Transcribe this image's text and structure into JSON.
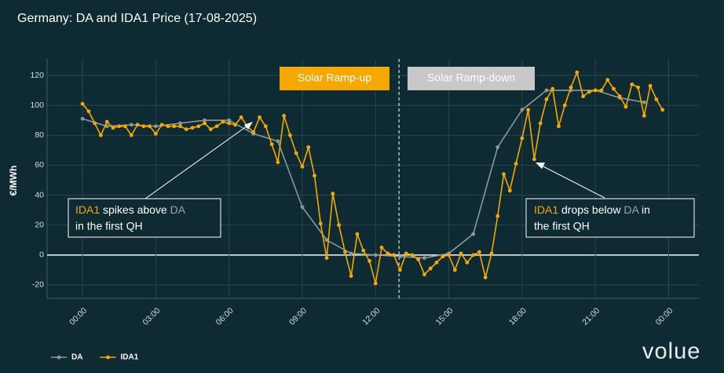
{
  "chart_data": {
    "type": "line",
    "title": "Germany: DA and IDA1 Price (17-08-2025)",
    "y_label": "€/MWh",
    "xlim": [
      -1.45,
      25.24
    ],
    "ylim": [
      -29,
      131
    ],
    "xticks": [
      {
        "value": 0,
        "label": "00:00"
      },
      {
        "value": 3,
        "label": "03:00"
      },
      {
        "value": 6,
        "label": "06:00"
      },
      {
        "value": 9,
        "label": "09:00"
      },
      {
        "value": 12,
        "label": "12:00"
      },
      {
        "value": 15,
        "label": "15:00"
      },
      {
        "value": 18,
        "label": "18:00"
      },
      {
        "value": 21,
        "label": "21:00"
      },
      {
        "value": 24,
        "label": "00:00"
      }
    ],
    "yticks": [
      -20,
      0,
      20,
      40,
      60,
      80,
      100,
      120
    ],
    "grid": true,
    "divider_x": 12.96,
    "series": [
      {
        "name": "DA",
        "color": "#8c979b",
        "x": [
          0,
          1,
          2,
          3,
          4,
          5,
          6,
          7,
          8,
          9,
          10,
          11,
          12,
          13,
          14,
          15,
          16,
          17,
          18,
          19,
          20,
          21,
          22,
          23
        ],
        "values": [
          91,
          86,
          87,
          86,
          88,
          90,
          90,
          81,
          76,
          32,
          10,
          1,
          0,
          -1,
          -2,
          1,
          14,
          72,
          97,
          110,
          110,
          110,
          105,
          102
        ]
      },
      {
        "name": "IDA1",
        "color": "#f5a800",
        "x": [
          0,
          0.25,
          0.5,
          0.75,
          1,
          1.25,
          1.5,
          1.75,
          2,
          2.25,
          2.5,
          2.75,
          3,
          3.25,
          3.5,
          3.75,
          4,
          4.25,
          4.5,
          4.75,
          5,
          5.25,
          5.5,
          5.75,
          6,
          6.25,
          6.5,
          6.75,
          7,
          7.25,
          7.5,
          7.75,
          8,
          8.25,
          8.5,
          8.75,
          9,
          9.25,
          9.5,
          9.75,
          10,
          10.25,
          10.5,
          10.75,
          11,
          11.25,
          11.5,
          11.75,
          12,
          12.25,
          12.5,
          12.75,
          13,
          13.25,
          13.5,
          13.75,
          14,
          14.25,
          14.5,
          14.75,
          15,
          15.25,
          15.5,
          15.75,
          16,
          16.25,
          16.5,
          16.75,
          17,
          17.25,
          17.5,
          17.75,
          18,
          18.25,
          18.5,
          18.75,
          19,
          19.25,
          19.5,
          19.75,
          20,
          20.25,
          20.5,
          20.75,
          21,
          21.25,
          21.5,
          21.75,
          22,
          22.25,
          22.5,
          22.75,
          23,
          23.25,
          23.5,
          23.75
        ],
        "values": [
          101,
          96,
          88,
          80,
          89,
          85,
          86,
          86,
          80,
          87,
          86,
          86,
          81,
          87,
          86,
          86,
          86,
          84,
          85,
          86,
          88,
          84,
          86,
          89,
          88,
          87,
          92,
          86,
          82,
          92,
          86,
          74,
          62,
          93,
          80,
          68,
          59,
          72,
          53,
          21,
          -2,
          41,
          20,
          2,
          -14,
          14,
          3,
          -4,
          -19,
          5,
          1,
          0,
          -10,
          1,
          0,
          -3,
          -13,
          -9,
          -5,
          -1,
          0,
          -10,
          1,
          -5,
          0,
          2,
          -15,
          1,
          26,
          54,
          43,
          61,
          78,
          97,
          64,
          88,
          104,
          111,
          86,
          100,
          112,
          122,
          106,
          109,
          110,
          110,
          117,
          111,
          106,
          99,
          114,
          112,
          93,
          113,
          104,
          97
        ]
      }
    ],
    "region_labels": [
      "Solar Ramp-up",
      "Solar Ramp-down"
    ],
    "annotations": [
      {
        "lead": "IDA1",
        "mid": " spikes above ",
        "ref": "DA",
        "line2": "in the first QH"
      },
      {
        "lead": "IDA1",
        "mid": " drops below ",
        "ref": "DA",
        "tail": " in",
        "line2": "the first QH"
      }
    ],
    "logo": "volue"
  }
}
